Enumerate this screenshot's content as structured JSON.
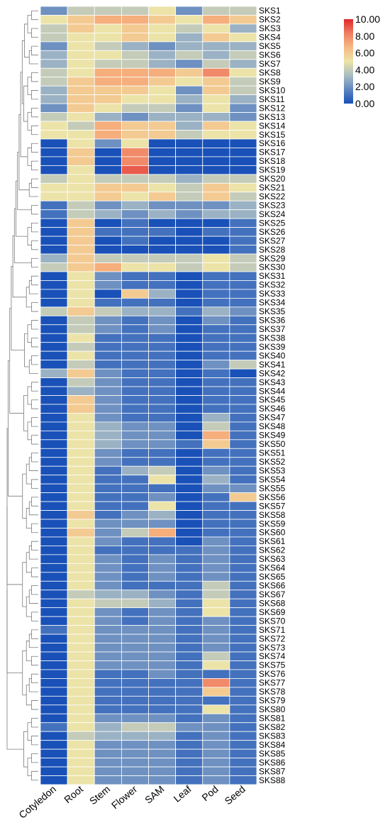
{
  "chart_data": {
    "type": "heatmap",
    "columns": [
      "Cotyledon",
      "Root",
      "Stem",
      "Flower",
      "SAM",
      "Leaf",
      "Pod",
      "Seed"
    ],
    "rows": [
      "SKS1",
      "SKS2",
      "SKS3",
      "SKS4",
      "SKS5",
      "SKS6",
      "SKS7",
      "SKS8",
      "SKS9",
      "SKS10",
      "SKS11",
      "SKS12",
      "SKS13",
      "SKS14",
      "SKS15",
      "SKS16",
      "SKS17",
      "SKS18",
      "SKS19",
      "SKS20",
      "SKS21",
      "SKS22",
      "SKS23",
      "SKS24",
      "SKS25",
      "SKS26",
      "SKS27",
      "SKS28",
      "SKS29",
      "SKS30",
      "SKS31",
      "SKS32",
      "SKS33",
      "SKS34",
      "SKS35",
      "SKS36",
      "SKS37",
      "SKS38",
      "SKS39",
      "SKS40",
      "SKS41",
      "SKS42",
      "SKS43",
      "SKS44",
      "SKS45",
      "SKS46",
      "SKS47",
      "SKS48",
      "SKS49",
      "SKS50",
      "SKS51",
      "SKS52",
      "SKS53",
      "SKS54",
      "SKS55",
      "SKS56",
      "SKS57",
      "SKS58",
      "SKS59",
      "SKS60",
      "SKS61",
      "SKS62",
      "SKS63",
      "SKS64",
      "SKS65",
      "SKS66",
      "SKS67",
      "SKS68",
      "SKS69",
      "SKS70",
      "SKS71",
      "SKS72",
      "SKS73",
      "SKS74",
      "SKS75",
      "SKS76",
      "SKS77",
      "SKS78",
      "SKS79",
      "SKS80",
      "SKS81",
      "SKS82",
      "SKS83",
      "SKS84",
      "SKS85",
      "SKS86",
      "SKS87",
      "SKS88"
    ],
    "values": [
      [
        2,
        4,
        4,
        4,
        5,
        2,
        4,
        4
      ],
      [
        5,
        6,
        7,
        7,
        6,
        5,
        7,
        6
      ],
      [
        4,
        6,
        5,
        6,
        5,
        4,
        5,
        3
      ],
      [
        4,
        5,
        5,
        6,
        5,
        3,
        6,
        5
      ],
      [
        2,
        5,
        4,
        3,
        2,
        3,
        3,
        3
      ],
      [
        3,
        5,
        5,
        4,
        3,
        4,
        3,
        4
      ],
      [
        3,
        5,
        4,
        4,
        3,
        2,
        4,
        3
      ],
      [
        4,
        5,
        7,
        7,
        7,
        6,
        8,
        5
      ],
      [
        4,
        6,
        7,
        7,
        6,
        5,
        6,
        4
      ],
      [
        3,
        6,
        6,
        6,
        5,
        2,
        6,
        4
      ],
      [
        3,
        6,
        6,
        5,
        5,
        3,
        5,
        3
      ],
      [
        2,
        6,
        5,
        4,
        4,
        2,
        5,
        2
      ],
      [
        4,
        5,
        3,
        2,
        3,
        3,
        3,
        2
      ],
      [
        5,
        4,
        7,
        6,
        6,
        3,
        6,
        5
      ],
      [
        5,
        5,
        7,
        6,
        6,
        4,
        5,
        5
      ],
      [
        0,
        5,
        2,
        5,
        0,
        0,
        0,
        0
      ],
      [
        0,
        6,
        0,
        8,
        0,
        0,
        0,
        0
      ],
      [
        0,
        6,
        0,
        8,
        0,
        0,
        0,
        0
      ],
      [
        0,
        5,
        0,
        9,
        0,
        0,
        0,
        0
      ],
      [
        4,
        5,
        4,
        4,
        4,
        3,
        4,
        4
      ],
      [
        5,
        5,
        6,
        6,
        5,
        4,
        6,
        5
      ],
      [
        5,
        5,
        6,
        5,
        6,
        4,
        6,
        4
      ],
      [
        1,
        4,
        2,
        3,
        2,
        2,
        2,
        3
      ],
      [
        1,
        4,
        3,
        2,
        3,
        2,
        3,
        3
      ],
      [
        0,
        6,
        0,
        1,
        0,
        0,
        0,
        1
      ],
      [
        0,
        6,
        1,
        1,
        1,
        0,
        1,
        1
      ],
      [
        0,
        6,
        0,
        1,
        0,
        0,
        0,
        1
      ],
      [
        0,
        6,
        0,
        0,
        0,
        0,
        0,
        1
      ],
      [
        3,
        6,
        4,
        4,
        4,
        4,
        5,
        4
      ],
      [
        4,
        6,
        7,
        5,
        5,
        4,
        5,
        4
      ],
      [
        0,
        5,
        2,
        1,
        1,
        0,
        1,
        1
      ],
      [
        0,
        5,
        2,
        1,
        1,
        0,
        1,
        1
      ],
      [
        0,
        5,
        0,
        6,
        3,
        0,
        1,
        1
      ],
      [
        0,
        5,
        1,
        1,
        1,
        0,
        1,
        1
      ],
      [
        4,
        6,
        4,
        3,
        3,
        1,
        3,
        2
      ],
      [
        0,
        4,
        2,
        1,
        2,
        0,
        2,
        1
      ],
      [
        0,
        4,
        2,
        1,
        2,
        0,
        1,
        1
      ],
      [
        0,
        5,
        1,
        1,
        1,
        0,
        1,
        1
      ],
      [
        0,
        4,
        1,
        1,
        1,
        0,
        1,
        1
      ],
      [
        0,
        5,
        1,
        1,
        1,
        0,
        1,
        1
      ],
      [
        0,
        4,
        1,
        1,
        1,
        0,
        2,
        4
      ],
      [
        3,
        6,
        2,
        1,
        1,
        0,
        1,
        0
      ],
      [
        0,
        4,
        2,
        1,
        1,
        0,
        1,
        1
      ],
      [
        0,
        3,
        2,
        1,
        1,
        0,
        1,
        1
      ],
      [
        0,
        6,
        2,
        1,
        1,
        0,
        1,
        1
      ],
      [
        0,
        6,
        2,
        1,
        1,
        0,
        1,
        1
      ],
      [
        0,
        5,
        2,
        1,
        1,
        0,
        3,
        1
      ],
      [
        0,
        5,
        3,
        2,
        2,
        0,
        4,
        1
      ],
      [
        0,
        5,
        3,
        2,
        2,
        0,
        7,
        1
      ],
      [
        0,
        5,
        3,
        2,
        2,
        1,
        6,
        1
      ],
      [
        0,
        5,
        2,
        1,
        1,
        0,
        1,
        1
      ],
      [
        0,
        5,
        2,
        1,
        1,
        0,
        1,
        1
      ],
      [
        0,
        5,
        1,
        3,
        4,
        0,
        2,
        1
      ],
      [
        0,
        5,
        1,
        1,
        5,
        0,
        3,
        1
      ],
      [
        0,
        5,
        1,
        1,
        1,
        0,
        2,
        2
      ],
      [
        0,
        5,
        1,
        1,
        2,
        0,
        1,
        6
      ],
      [
        0,
        5,
        1,
        1,
        5,
        0,
        1,
        1
      ],
      [
        0,
        6,
        1,
        2,
        3,
        0,
        1,
        1
      ],
      [
        0,
        5,
        2,
        2,
        2,
        0,
        1,
        1
      ],
      [
        0,
        6,
        2,
        4,
        7,
        0,
        1,
        1
      ],
      [
        0,
        5,
        2,
        1,
        1,
        0,
        2,
        1
      ],
      [
        0,
        5,
        1,
        1,
        1,
        1,
        2,
        1
      ],
      [
        0,
        5,
        2,
        1,
        2,
        1,
        2,
        1
      ],
      [
        0,
        5,
        2,
        1,
        2,
        1,
        2,
        1
      ],
      [
        0,
        5,
        2,
        1,
        2,
        1,
        2,
        1
      ],
      [
        0,
        5,
        2,
        1,
        1,
        1,
        4,
        1
      ],
      [
        0,
        4,
        3,
        3,
        2,
        1,
        4,
        1
      ],
      [
        0,
        5,
        4,
        4,
        3,
        1,
        5,
        1
      ],
      [
        0,
        5,
        2,
        1,
        2,
        1,
        5,
        1
      ],
      [
        0,
        5,
        2,
        1,
        2,
        1,
        2,
        1
      ],
      [
        1,
        5,
        2,
        2,
        2,
        1,
        2,
        1
      ],
      [
        0,
        5,
        2,
        2,
        2,
        1,
        2,
        1
      ],
      [
        0,
        5,
        2,
        2,
        2,
        1,
        2,
        1
      ],
      [
        0,
        5,
        2,
        2,
        2,
        1,
        4,
        1
      ],
      [
        0,
        5,
        2,
        2,
        2,
        1,
        5,
        1
      ],
      [
        0,
        5,
        1,
        1,
        2,
        1,
        1,
        1
      ],
      [
        0,
        5,
        1,
        1,
        1,
        1,
        8,
        1
      ],
      [
        0,
        5,
        1,
        1,
        1,
        1,
        6,
        1
      ],
      [
        0,
        5,
        1,
        1,
        1,
        1,
        1,
        1
      ],
      [
        0,
        5,
        1,
        1,
        1,
        1,
        5,
        1
      ],
      [
        0,
        5,
        2,
        2,
        2,
        1,
        2,
        1
      ],
      [
        1,
        5,
        3,
        4,
        4,
        2,
        2,
        1
      ],
      [
        0,
        4,
        3,
        3,
        3,
        1,
        2,
        1
      ],
      [
        0,
        5,
        2,
        2,
        2,
        1,
        2,
        1
      ],
      [
        0,
        5,
        2,
        2,
        2,
        1,
        2,
        1
      ],
      [
        0,
        5,
        2,
        2,
        2,
        1,
        2,
        1
      ],
      [
        0,
        5,
        2,
        2,
        2,
        1,
        2,
        1
      ],
      [
        0,
        5,
        2,
        2,
        2,
        1,
        2,
        1
      ]
    ],
    "colorbar": {
      "min": 0,
      "max": 10,
      "ticks": [
        "10.00",
        "8.00",
        "6.00",
        "4.00",
        "2.00",
        "0.00"
      ],
      "colors": [
        "#1951b8",
        "#5f86c0",
        "#a9bdc4",
        "#ece3a8",
        "#f7ba82",
        "#ef7e62",
        "#e0272a"
      ]
    },
    "dendrogram": true,
    "grid": true,
    "legend_position": "top-right"
  }
}
